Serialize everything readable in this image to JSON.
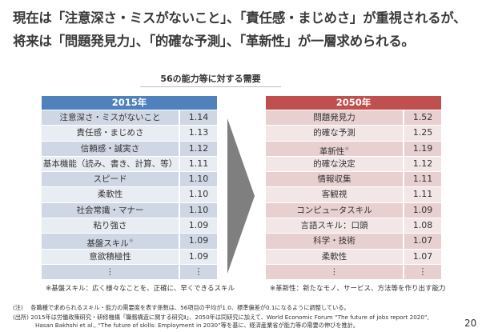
{
  "heading": {
    "line1": "現在は「注意深さ・ミスがないこと」、「責任感・まじめさ」が重視されるが、",
    "line2": "将来は「問題発見力」、「的確な予測」、「革新性」が一層求められる。"
  },
  "subtitle": "56の能力等に対する需要",
  "left": {
    "header": "2015年",
    "header_color": "#4f81bd",
    "rows": [
      {
        "name": "注意深さ・ミスがないこと",
        "value": "1.14"
      },
      {
        "name": "責任感・まじめさ",
        "value": "1.13"
      },
      {
        "name": "信頼感・誠実さ",
        "value": "1.12"
      },
      {
        "name": "基本機能（読み、書き、計算、等）",
        "value": "1.11"
      },
      {
        "name": "スピード",
        "value": "1.10"
      },
      {
        "name": "柔軟性",
        "value": "1.10"
      },
      {
        "name": "社会常識・マナー",
        "value": "1.10"
      },
      {
        "name": "粘り強さ",
        "value": "1.09"
      },
      {
        "name": "基盤スキル",
        "mark": "※",
        "value": "1.09"
      },
      {
        "name": "意欲積極性",
        "value": "1.09"
      },
      {
        "name": "⋮",
        "value": "⋮"
      }
    ],
    "footnote": "※基盤スキル：広く様々なことを、正確に、早くできるスキル"
  },
  "right": {
    "header": "2050年",
    "header_color": "#c0504d",
    "rows": [
      {
        "name": "問題発見力",
        "value": "1.52"
      },
      {
        "name": "的確な予測",
        "value": "1.25"
      },
      {
        "name": "革新性",
        "mark": "※",
        "value": "1.19"
      },
      {
        "name": "的確な決定",
        "value": "1.12"
      },
      {
        "name": "情報収集",
        "value": "1.11"
      },
      {
        "name": "客観視",
        "value": "1.11"
      },
      {
        "name": "コンピュータスキル",
        "value": "1.09"
      },
      {
        "name": "言語スキル：口頭",
        "value": "1.08"
      },
      {
        "name": "科学・技術",
        "value": "1.07"
      },
      {
        "name": "柔軟性",
        "value": "1.07"
      },
      {
        "name": "⋮",
        "value": "⋮"
      }
    ],
    "footnote": "※革新性：新たなモノ、サービス、方法等を作り出す能力"
  },
  "notes": {
    "note": "(注)　 各職種で求められるスキル・能力の需要度を表す係数は、56項目の平均が1.0、標準偏差が0.1になるように調整している。",
    "source1": "(出所) 2015年は労働政策研究・研修機構「職務構造に関する研究Ⅱ」、2050年は同研究に加えて、World Economic Forum “The future of jobs report 2020”,",
    "source2": "Hasan Bakhshi et al., “The future of skills: Employment in 2030”等を基に、経済産業省が能力等の需要の伸びを推計。"
  },
  "page_number": "20"
}
